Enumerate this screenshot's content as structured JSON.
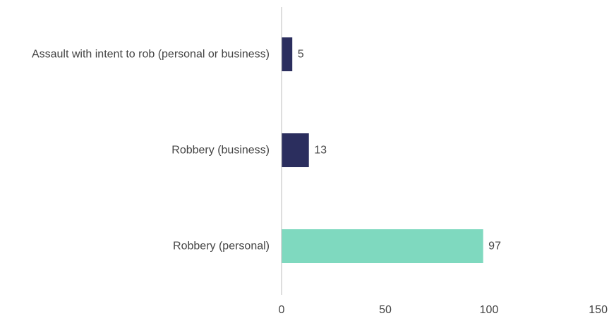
{
  "chart_data": {
    "type": "bar",
    "orientation": "horizontal",
    "categories": [
      "Assault with intent to rob (personal or business)",
      "Robbery (business)",
      "Robbery (personal)"
    ],
    "values": [
      5,
      13,
      97
    ],
    "value_labels": [
      "5",
      "13",
      "97"
    ],
    "bar_colors": [
      "#2b2e5e",
      "#2b2e5e",
      "#7fd9bf"
    ],
    "xlim": [
      0,
      150
    ],
    "xticks": [
      0,
      50,
      100,
      150
    ],
    "xtick_labels": [
      "0",
      "50",
      "100",
      "150"
    ],
    "grid": false,
    "legend": "none"
  }
}
